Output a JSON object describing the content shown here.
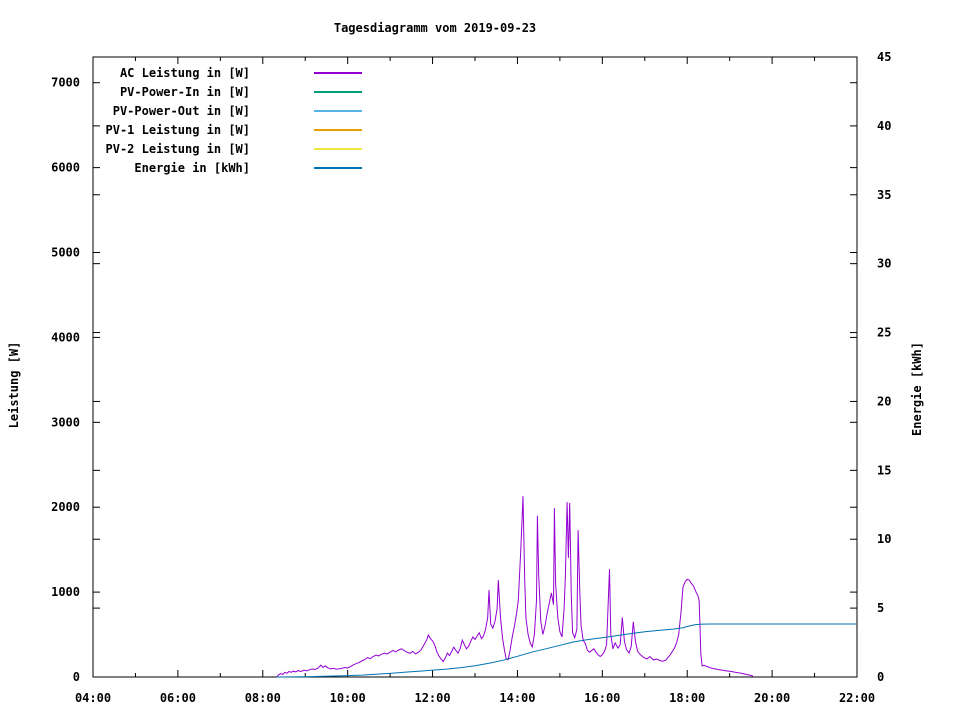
{
  "title": "Tagesdiagramm vom 2019-09-23",
  "axes": {
    "y_left": {
      "label": "Leistung [W]",
      "ticks": [
        0,
        1000,
        2000,
        3000,
        4000,
        5000,
        6000,
        7000
      ],
      "range": [
        0,
        7303
      ]
    },
    "y_right": {
      "label": "Energie [kWh]",
      "ticks": [
        0,
        5,
        10,
        15,
        20,
        25,
        30,
        35,
        40,
        45
      ],
      "range": [
        0,
        45
      ]
    },
    "x": {
      "tick_labels": [
        "04:00",
        "06:00",
        "08:00",
        "10:00",
        "12:00",
        "14:00",
        "16:00",
        "18:00",
        "20:00",
        "22:00"
      ],
      "major_hours": [
        4,
        6,
        8,
        10,
        12,
        14,
        16,
        18,
        20,
        22
      ],
      "minor_hours": [
        5,
        7,
        9,
        11,
        13,
        15,
        17,
        19,
        21
      ],
      "range_hours": [
        4,
        22
      ]
    }
  },
  "chart_data": {
    "type": "line",
    "title": "Tagesdiagramm vom 2019-09-23",
    "xlabel": "",
    "ylabel_left": "Leistung [W]",
    "ylabel_right": "Energie [kWh]",
    "x_lim_hours": [
      4,
      22
    ],
    "y_left_lim": [
      0,
      7303
    ],
    "y_right_lim": [
      0,
      45
    ],
    "grid": false,
    "legend_position": "inside-top-left",
    "series": [
      {
        "name": "AC Leistung in [W]",
        "color": "#9400d3",
        "axis": "left",
        "unit": "W",
        "points": [
          [
            8.33,
            0
          ],
          [
            8.37,
            25
          ],
          [
            8.42,
            40
          ],
          [
            8.47,
            30
          ],
          [
            8.52,
            55
          ],
          [
            8.57,
            45
          ],
          [
            8.62,
            65
          ],
          [
            8.67,
            55
          ],
          [
            8.72,
            70
          ],
          [
            8.78,
            60
          ],
          [
            8.83,
            75
          ],
          [
            8.9,
            65
          ],
          [
            8.97,
            80
          ],
          [
            9.03,
            72
          ],
          [
            9.1,
            85
          ],
          [
            9.17,
            95
          ],
          [
            9.23,
            88
          ],
          [
            9.3,
            105
          ],
          [
            9.37,
            140
          ],
          [
            9.42,
            112
          ],
          [
            9.47,
            132
          ],
          [
            9.53,
            108
          ],
          [
            9.6,
            95
          ],
          [
            9.67,
            102
          ],
          [
            9.73,
            92
          ],
          [
            9.8,
            97
          ],
          [
            9.87,
            103
          ],
          [
            9.93,
            112
          ],
          [
            10.0,
            106
          ],
          [
            10.07,
            122
          ],
          [
            10.13,
            142
          ],
          [
            10.2,
            158
          ],
          [
            10.27,
            172
          ],
          [
            10.33,
            188
          ],
          [
            10.4,
            205
          ],
          [
            10.47,
            228
          ],
          [
            10.53,
            215
          ],
          [
            10.6,
            242
          ],
          [
            10.67,
            258
          ],
          [
            10.73,
            248
          ],
          [
            10.8,
            268
          ],
          [
            10.87,
            282
          ],
          [
            10.93,
            270
          ],
          [
            11.0,
            292
          ],
          [
            11.07,
            312
          ],
          [
            11.13,
            296
          ],
          [
            11.2,
            318
          ],
          [
            11.27,
            332
          ],
          [
            11.33,
            312
          ],
          [
            11.4,
            292
          ],
          [
            11.47,
            278
          ],
          [
            11.53,
            302
          ],
          [
            11.6,
            272
          ],
          [
            11.67,
            292
          ],
          [
            11.73,
            322
          ],
          [
            11.8,
            382
          ],
          [
            11.87,
            445
          ],
          [
            11.9,
            495
          ],
          [
            11.93,
            468
          ],
          [
            11.97,
            440
          ],
          [
            12.0,
            425
          ],
          [
            12.05,
            378
          ],
          [
            12.1,
            298
          ],
          [
            12.15,
            248
          ],
          [
            12.2,
            212
          ],
          [
            12.25,
            182
          ],
          [
            12.3,
            225
          ],
          [
            12.35,
            282
          ],
          [
            12.4,
            252
          ],
          [
            12.45,
            302
          ],
          [
            12.5,
            352
          ],
          [
            12.55,
            312
          ],
          [
            12.6,
            282
          ],
          [
            12.65,
            332
          ],
          [
            12.7,
            435
          ],
          [
            12.75,
            382
          ],
          [
            12.8,
            332
          ],
          [
            12.85,
            362
          ],
          [
            12.9,
            422
          ],
          [
            12.95,
            472
          ],
          [
            13.0,
            442
          ],
          [
            13.05,
            482
          ],
          [
            13.1,
            522
          ],
          [
            13.15,
            452
          ],
          [
            13.2,
            482
          ],
          [
            13.25,
            562
          ],
          [
            13.3,
            702
          ],
          [
            13.33,
            1025
          ],
          [
            13.37,
            622
          ],
          [
            13.42,
            575
          ],
          [
            13.47,
            652
          ],
          [
            13.52,
            802
          ],
          [
            13.55,
            1140
          ],
          [
            13.6,
            702
          ],
          [
            13.65,
            452
          ],
          [
            13.7,
            302
          ],
          [
            13.73,
            222
          ],
          [
            13.78,
            202
          ],
          [
            13.83,
            322
          ],
          [
            13.88,
            482
          ],
          [
            13.93,
            602
          ],
          [
            13.98,
            752
          ],
          [
            14.02,
            902
          ],
          [
            14.08,
            1502
          ],
          [
            14.13,
            2130
          ],
          [
            14.17,
            1152
          ],
          [
            14.2,
            702
          ],
          [
            14.25,
            502
          ],
          [
            14.3,
            402
          ],
          [
            14.35,
            355
          ],
          [
            14.4,
            502
          ],
          [
            14.45,
            902
          ],
          [
            14.47,
            1900
          ],
          [
            14.5,
            1202
          ],
          [
            14.55,
            652
          ],
          [
            14.6,
            502
          ],
          [
            14.65,
            602
          ],
          [
            14.7,
            752
          ],
          [
            14.75,
            872
          ],
          [
            14.8,
            990
          ],
          [
            14.85,
            852
          ],
          [
            14.87,
            1990
          ],
          [
            14.9,
            1102
          ],
          [
            14.95,
            702
          ],
          [
            15.0,
            532
          ],
          [
            15.05,
            472
          ],
          [
            15.1,
            802
          ],
          [
            15.13,
            1202
          ],
          [
            15.17,
            2060
          ],
          [
            15.2,
            1402
          ],
          [
            15.23,
            2050
          ],
          [
            15.27,
            952
          ],
          [
            15.3,
            522
          ],
          [
            15.35,
            462
          ],
          [
            15.4,
            562
          ],
          [
            15.43,
            1730
          ],
          [
            15.47,
            1002
          ],
          [
            15.5,
            602
          ],
          [
            15.55,
            432
          ],
          [
            15.6,
            392
          ],
          [
            15.65,
            312
          ],
          [
            15.7,
            292
          ],
          [
            15.75,
            312
          ],
          [
            15.8,
            332
          ],
          [
            15.85,
            292
          ],
          [
            15.9,
            262
          ],
          [
            15.95,
            242
          ],
          [
            16.0,
            262
          ],
          [
            16.05,
            302
          ],
          [
            16.1,
            382
          ],
          [
            16.17,
            1270
          ],
          [
            16.2,
            502
          ],
          [
            16.25,
            332
          ],
          [
            16.3,
            402
          ],
          [
            16.37,
            342
          ],
          [
            16.42,
            382
          ],
          [
            16.47,
            700
          ],
          [
            16.52,
            422
          ],
          [
            16.57,
            322
          ],
          [
            16.63,
            282
          ],
          [
            16.68,
            362
          ],
          [
            16.73,
            650
          ],
          [
            16.78,
            422
          ],
          [
            16.83,
            302
          ],
          [
            16.9,
            262
          ],
          [
            16.97,
            232
          ],
          [
            17.05,
            212
          ],
          [
            17.12,
            242
          ],
          [
            17.2,
            202
          ],
          [
            17.28,
            212
          ],
          [
            17.35,
            195
          ],
          [
            17.42,
            185
          ],
          [
            17.5,
            202
          ],
          [
            17.55,
            232
          ],
          [
            17.6,
            262
          ],
          [
            17.65,
            302
          ],
          [
            17.7,
            342
          ],
          [
            17.75,
            402
          ],
          [
            17.8,
            502
          ],
          [
            17.85,
            752
          ],
          [
            17.9,
            1060
          ],
          [
            17.95,
            1120
          ],
          [
            18.0,
            1150
          ],
          [
            18.05,
            1140
          ],
          [
            18.1,
            1100
          ],
          [
            18.15,
            1070
          ],
          [
            18.2,
            1010
          ],
          [
            18.25,
            960
          ],
          [
            18.28,
            905
          ],
          [
            18.3,
            600
          ],
          [
            18.32,
            280
          ],
          [
            18.35,
            130
          ],
          [
            18.4,
            138
          ],
          [
            18.45,
            126
          ],
          [
            18.5,
            118
          ],
          [
            18.55,
            108
          ],
          [
            18.6,
            100
          ],
          [
            18.65,
            96
          ],
          [
            18.7,
            92
          ],
          [
            18.75,
            86
          ],
          [
            18.8,
            82
          ],
          [
            18.85,
            78
          ],
          [
            18.9,
            74
          ],
          [
            18.95,
            71
          ],
          [
            19.0,
            67
          ],
          [
            19.07,
            62
          ],
          [
            19.13,
            57
          ],
          [
            19.2,
            50
          ],
          [
            19.27,
            44
          ],
          [
            19.33,
            38
          ],
          [
            19.4,
            30
          ],
          [
            19.47,
            22
          ],
          [
            19.55,
            12
          ]
        ]
      },
      {
        "name": "PV-Power-In in [W]",
        "color": "#009e73",
        "axis": "left",
        "unit": "W",
        "points": []
      },
      {
        "name": "PV-Power-Out in [W]",
        "color": "#56b4e9",
        "axis": "left",
        "unit": "W",
        "points": []
      },
      {
        "name": "PV-1 Leistung in [W]",
        "color": "#e69f00",
        "axis": "left",
        "unit": "W",
        "points": []
      },
      {
        "name": "PV-2 Leistung in [W]",
        "color": "#f0e442",
        "axis": "left",
        "unit": "W",
        "points": []
      },
      {
        "name": "Energie in [kWh]",
        "color": "#0072b2",
        "axis": "right",
        "unit": "kWh",
        "points": [
          [
            8.33,
            0
          ],
          [
            8.67,
            0.01
          ],
          [
            9.0,
            0.02
          ],
          [
            9.33,
            0.04
          ],
          [
            9.67,
            0.07
          ],
          [
            10.0,
            0.1
          ],
          [
            10.33,
            0.14
          ],
          [
            10.67,
            0.2
          ],
          [
            11.0,
            0.26
          ],
          [
            11.33,
            0.34
          ],
          [
            11.67,
            0.42
          ],
          [
            12.0,
            0.5
          ],
          [
            12.33,
            0.57
          ],
          [
            12.67,
            0.68
          ],
          [
            13.0,
            0.82
          ],
          [
            13.33,
            1.0
          ],
          [
            13.67,
            1.22
          ],
          [
            14.0,
            1.5
          ],
          [
            14.33,
            1.8
          ],
          [
            14.67,
            2.05
          ],
          [
            15.0,
            2.3
          ],
          [
            15.33,
            2.55
          ],
          [
            15.67,
            2.72
          ],
          [
            16.0,
            2.85
          ],
          [
            16.33,
            3.0
          ],
          [
            16.67,
            3.15
          ],
          [
            17.0,
            3.28
          ],
          [
            17.33,
            3.38
          ],
          [
            17.67,
            3.48
          ],
          [
            17.9,
            3.58
          ],
          [
            18.05,
            3.7
          ],
          [
            18.2,
            3.8
          ],
          [
            18.35,
            3.84
          ],
          [
            18.6,
            3.85
          ],
          [
            22.0,
            3.85
          ]
        ]
      }
    ]
  },
  "colors": {
    "foreground": "#000000",
    "background": "#ffffff"
  }
}
